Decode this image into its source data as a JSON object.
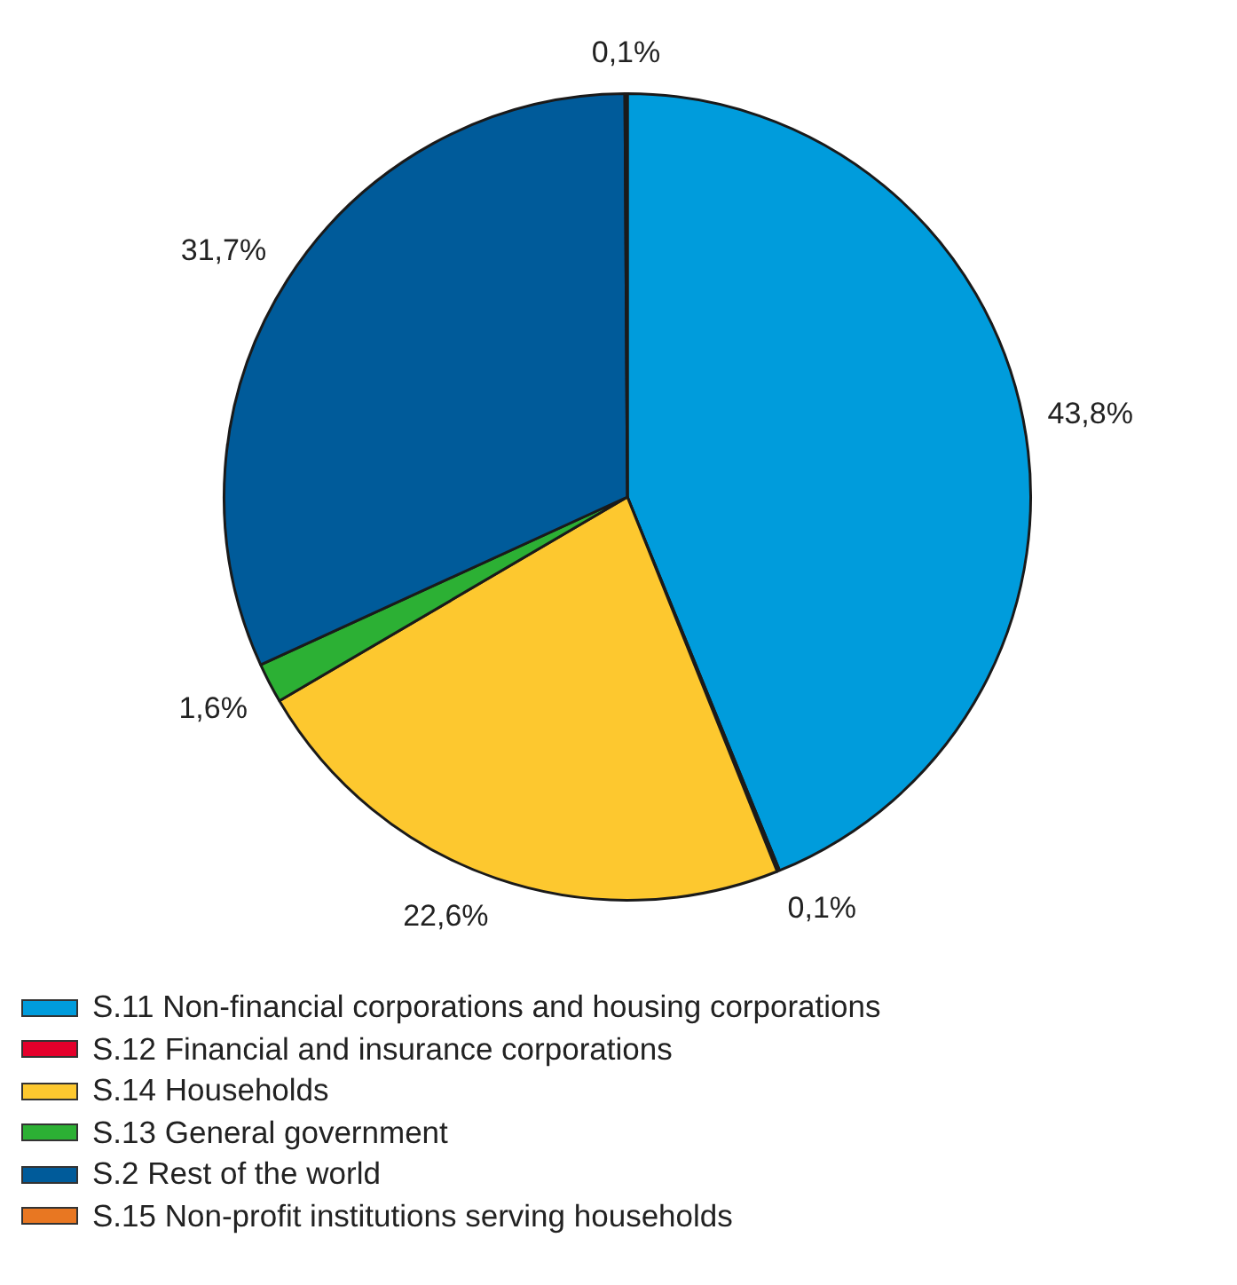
{
  "chart_data": {
    "type": "pie",
    "categories": [
      "S.11 Non-financial corporations and housing corporations",
      "S.12 Financial and insurance corporations",
      "S.14 Households",
      "S.13 General government",
      "S.2 Rest of the world",
      "S.15 Non-profit institutions serving households"
    ],
    "values": [
      43.8,
      0.1,
      22.6,
      1.6,
      31.7,
      0.1
    ],
    "colors": [
      "#009cdc",
      "#e4002b",
      "#fdc82f",
      "#2cb034",
      "#005b9a",
      "#e87722"
    ],
    "value_labels": [
      "43,8%",
      "0,1%",
      "22,6%",
      "1,6%",
      "31,7%",
      "0,1%"
    ],
    "legend": "bottom"
  }
}
